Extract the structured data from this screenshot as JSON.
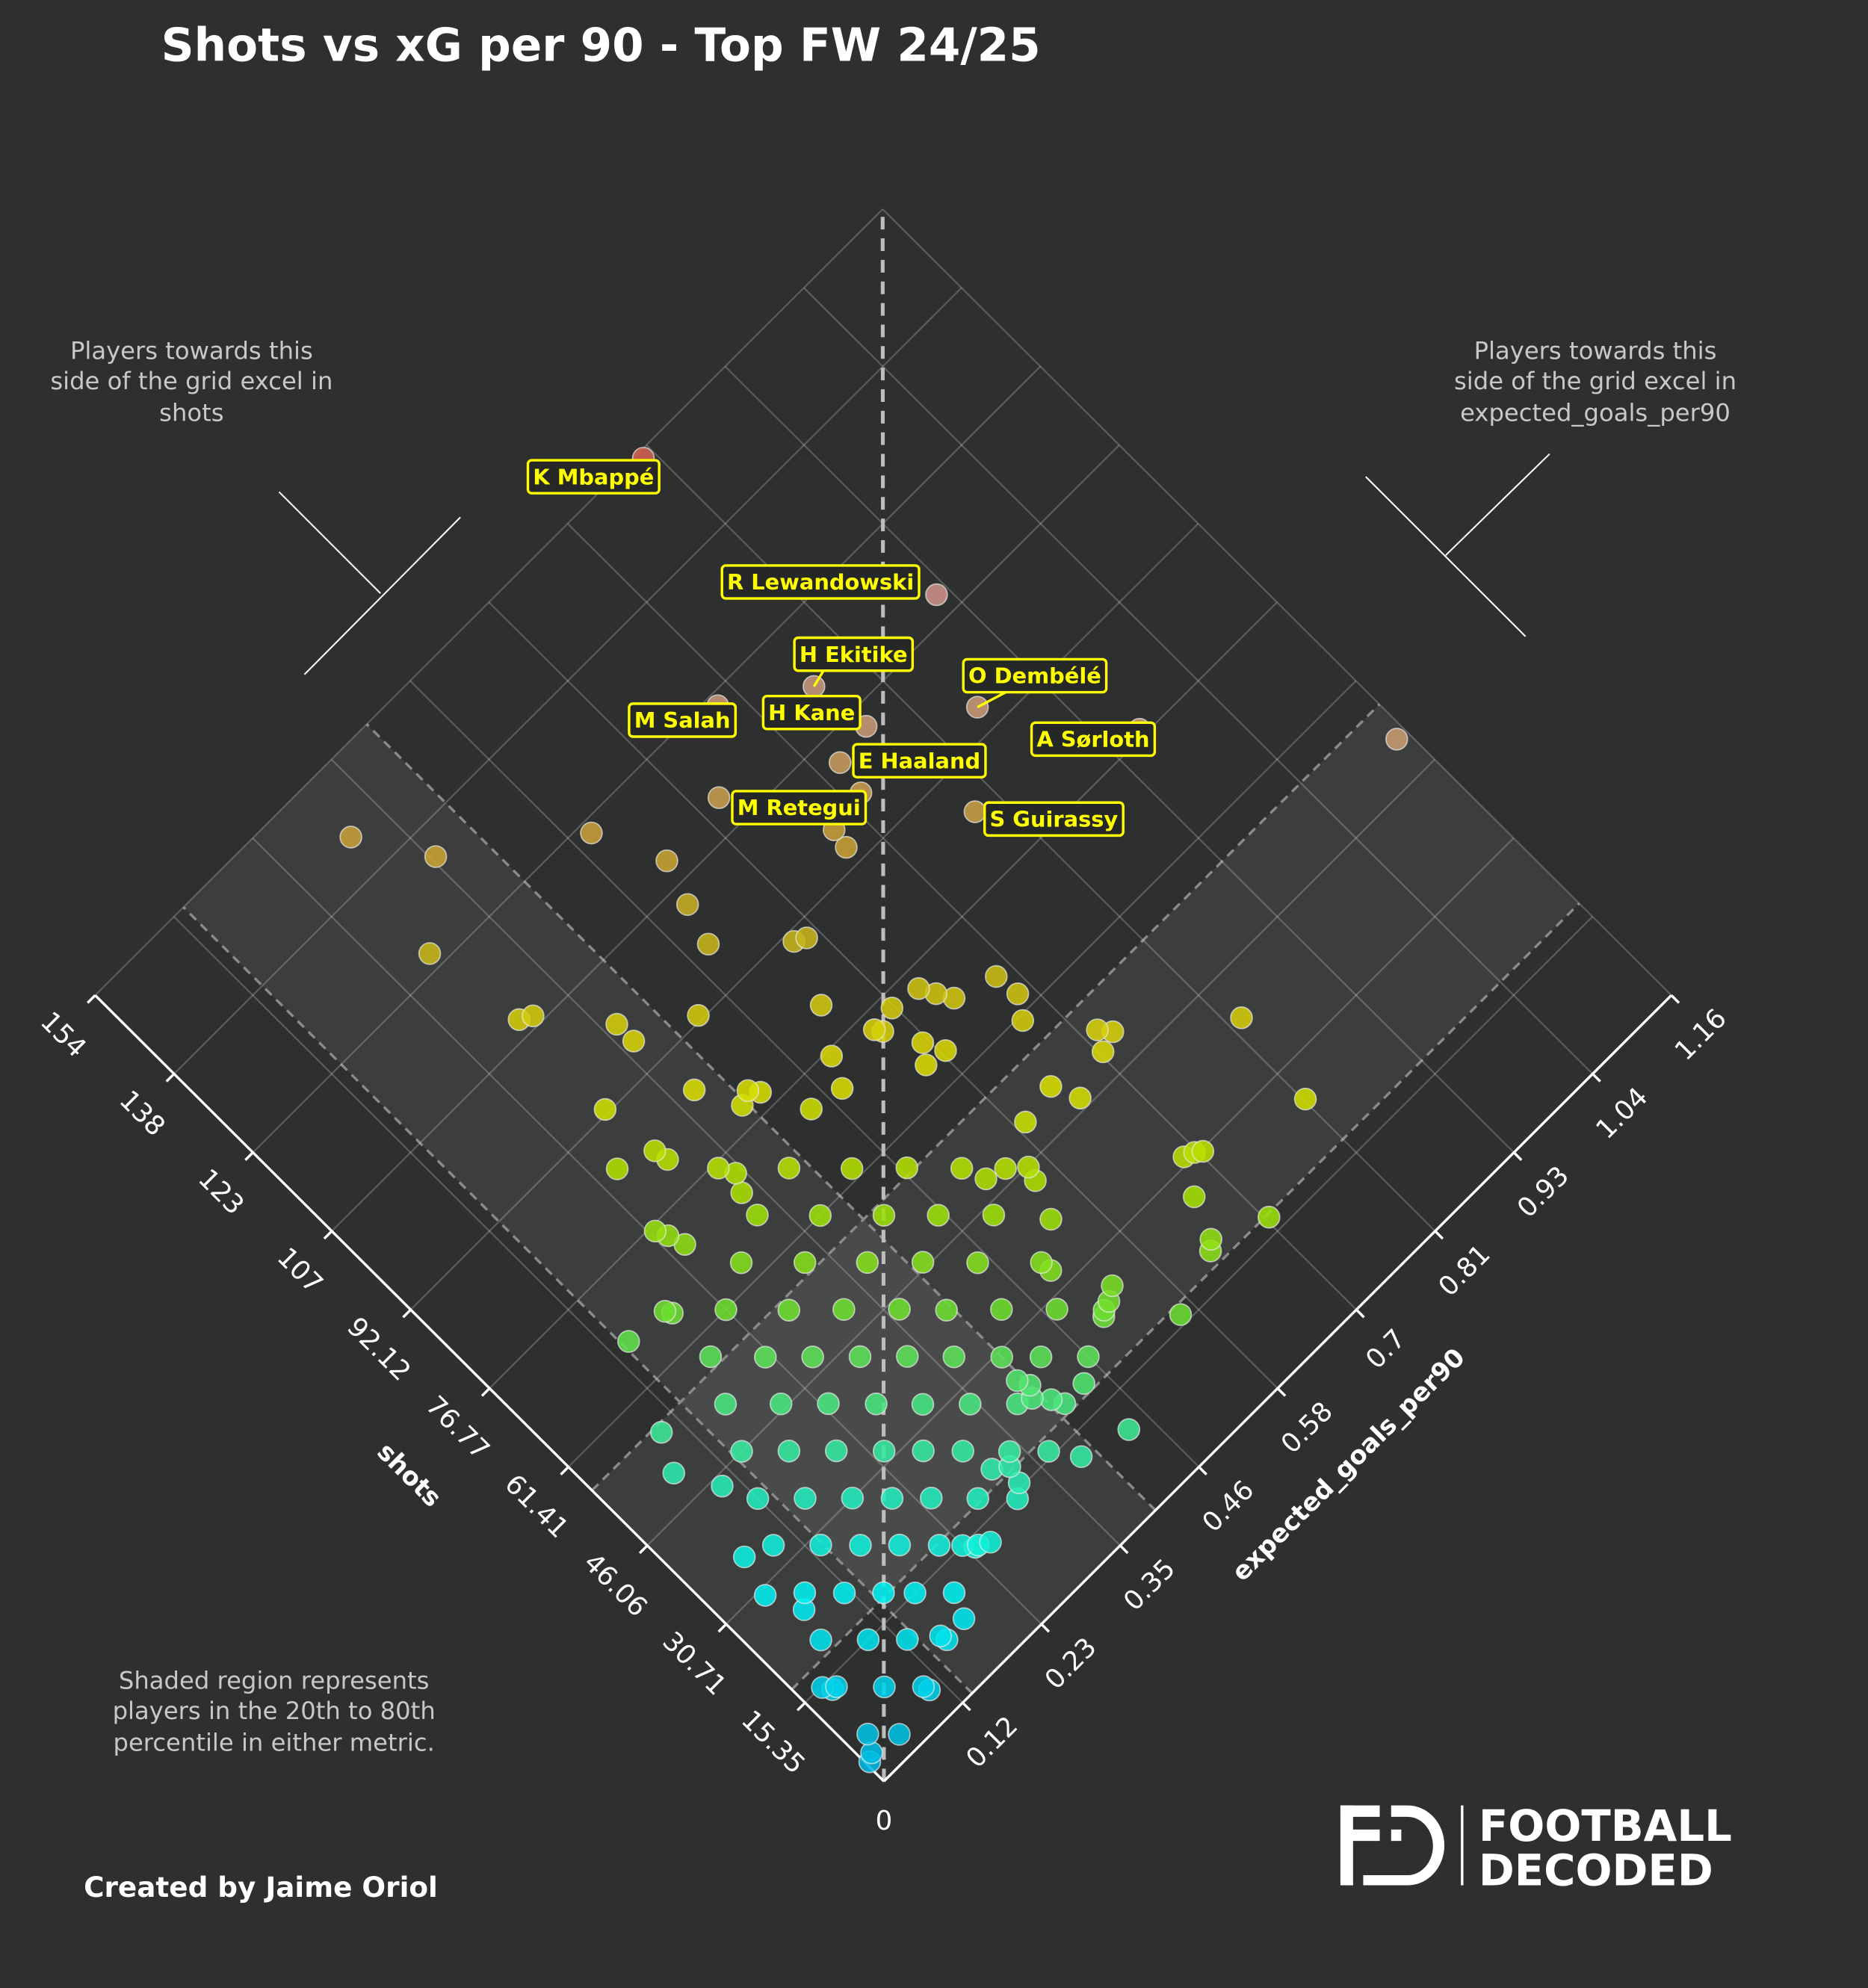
{
  "title": "Shots vs xG per 90 - Top FW 24/25",
  "notes": {
    "left": [
      "Players towards this",
      "side of the grid excel in",
      "shots"
    ],
    "right": [
      "Players towards this",
      "side of the grid excel in",
      "expected_goals_per90"
    ],
    "shaded": [
      "Shaded region represents",
      "players in the 20th to 80th",
      "percentile in either metric."
    ]
  },
  "credit": "Created by Jaime Oriol",
  "logo": {
    "line1": "FOOTBALL",
    "line2": "DECODED",
    "mark": "FD"
  },
  "colors": {
    "background": "#2e2f2f",
    "label_text": "#ffff00",
    "label_border": "#ffff00",
    "low": "#00d0f0",
    "mid": "#70e030",
    "high": "#e0e000",
    "top": "#d04a30"
  },
  "chart_data": {
    "type": "scatter",
    "title": "Shots vs xG per 90 - Top FW 24/25",
    "xlabel": "shots",
    "ylabel": "expected_goals_per90",
    "xlim": [
      0,
      154
    ],
    "ylim": [
      0,
      1.16
    ],
    "origin_label": "0",
    "shots_ticks": [
      "15.35",
      "30.71",
      "46.06",
      "61.41",
      "76.77",
      "92.12",
      "107",
      "123",
      "138",
      "154"
    ],
    "xg_ticks": [
      "0.12",
      "0.23",
      "0.35",
      "0.46",
      "0.58",
      "0.7",
      "0.81",
      "0.93",
      "1.04",
      "1.16"
    ],
    "grid": true,
    "shaded_band": {
      "shots": [
        18,
        57
      ],
      "expected_goals_per90": [
        0.13,
        0.4
      ]
    },
    "color_by": "combined rank",
    "labeled_players": [
      {
        "name": "K Mbappé",
        "shots": 153,
        "xg": 0.8
      },
      {
        "name": "R Lewandowski",
        "shots": 111,
        "xg": 0.915
      },
      {
        "name": "H Ekitike",
        "shots": 114,
        "xg": 0.757
      },
      {
        "name": "O Dembélé",
        "shots": 96,
        "xg": 0.862
      },
      {
        "name": "M Salah",
        "shots": 121.5,
        "xg": 0.672
      },
      {
        "name": "H Kane",
        "shots": 105,
        "xg": 0.766
      },
      {
        "name": "E Haaland",
        "shots": 104,
        "xg": 0.72
      },
      {
        "name": "A Sørloth",
        "shots": 78,
        "xg": 0.965
      },
      {
        "name": "M Retegui",
        "shots": 99,
        "xg": 0.713
      },
      {
        "name": "S Guirassy",
        "shots": 86,
        "xg": 0.783
      }
    ],
    "points": [
      [
        144.5,
        0.305
      ],
      [
        134.3,
        0.353
      ],
      [
        125.4,
        0.277
      ],
      [
        110.2,
        0.294
      ],
      [
        109.2,
        0.307
      ],
      [
        121.4,
        0.485
      ],
      [
        111.3,
        0.52
      ],
      [
        105.0,
        0.503
      ],
      [
        99.1,
        0.489
      ],
      [
        112.4,
        0.605
      ],
      [
        91.0,
        0.554
      ],
      [
        90.1,
        0.566
      ],
      [
        98.0,
        0.666
      ],
      [
        95.1,
        0.662
      ],
      [
        100.2,
        0.3625
      ],
      [
        96.9,
        0.3625
      ],
      [
        93.1,
        0.429
      ],
      [
        82.1,
        0.527
      ],
      [
        93.0,
        0.291
      ],
      [
        86.2,
        0.371
      ],
      [
        86.0,
        0.256
      ],
      [
        84.1,
        0.297
      ],
      [
        82.0,
        0.3
      ],
      [
        80.9,
        0.41
      ],
      [
        79.5,
        0.418
      ],
      [
        80.0,
        0.395
      ],
      [
        72.9,
        0.443
      ],
      [
        71.9,
        0.481
      ],
      [
        76.1,
        0.497
      ],
      [
        74.5,
        0.548
      ],
      [
        73.5,
        0.553
      ],
      [
        74.9,
        0.577
      ],
      [
        74.2,
        0.611
      ],
      [
        72.0,
        0.62
      ],
      [
        69.8,
        0.63
      ],
      [
        67.8,
        0.677
      ],
      [
        64.0,
        0.68
      ],
      [
        60.9,
        0.664
      ],
      [
        68.5,
        0.574
      ],
      [
        66.0,
        0.56
      ],
      [
        65.5,
        0.585
      ],
      [
        52.7,
        0.712
      ],
      [
        51.0,
        0.722
      ],
      [
        50.0,
        0.7
      ],
      [
        51.7,
        0.636
      ],
      [
        47.7,
        0.649
      ],
      [
        50.7,
        0.591
      ],
      [
        39.8,
        0.827
      ],
      [
        25.6,
        0.814
      ],
      [
        51.9,
        1.147
      ],
      [
        31.2,
        0.693
      ],
      [
        30.5,
        0.7
      ],
      [
        31.8,
        0.682
      ],
      [
        26.9,
        0.66
      ],
      [
        21.1,
        0.641
      ],
      [
        20.0,
        0.632
      ],
      [
        17.6,
        0.7
      ],
      [
        16.7,
        0.563
      ],
      [
        10.5,
        0.44
      ],
      [
        48.1,
        0.542
      ],
      [
        46.0,
        0.56
      ],
      [
        44.0,
        0.555
      ],
      [
        49.0,
        0.52
      ],
      [
        38.7,
        0.538
      ],
      [
        33.7,
        0.5
      ],
      [
        26.2,
        0.534
      ],
      [
        25.0,
        0.52
      ],
      [
        24.0,
        0.505
      ],
      [
        19.4,
        0.441
      ],
      [
        12.5,
        0.385
      ],
      [
        68.0,
        0.137
      ],
      [
        55.9,
        0.094
      ],
      [
        50.7,
        0.073
      ],
      [
        44.7,
        0.099
      ],
      [
        35.6,
        0.063
      ],
      [
        29.8,
        0.05
      ],
      [
        24.6,
        0.068
      ],
      [
        15.2,
        0.024
      ],
      [
        14.0,
        0.03
      ],
      [
        3.3,
        0.004
      ],
      [
        4.0,
        0.012
      ],
      [
        4.5,
        0.101
      ],
      [
        8.1,
        0.179
      ],
      [
        8.7,
        0.149
      ],
      [
        67.4,
        0.186
      ],
      [
        66.5,
        0.19
      ],
      [
        76.2,
        0.238
      ],
      [
        74.5,
        0.244
      ],
      [
        72.0,
        0.25
      ],
      [
        76.2,
        0.331
      ],
      [
        74.0,
        0.34
      ],
      [
        71.5,
        0.33
      ],
      [
        26.2,
        0.394
      ],
      [
        24.5,
        0.4
      ],
      [
        23.0,
        0.392
      ],
      [
        21.0,
        0.405
      ],
      [
        18.5,
        0.325
      ],
      [
        16.0,
        0.32
      ],
      [
        20.0,
        0.31
      ],
      [
        15.4,
        0.232
      ],
      [
        14.0,
        0.24
      ],
      [
        13.0,
        0.255
      ],
      [
        6.2,
        0.023
      ],
      [
        3.1,
        0.046
      ],
      [
        13.9,
        0.035
      ],
      [
        9.2,
        0.07
      ],
      [
        5.4,
        0.099
      ],
      [
        20.0,
        0.058
      ],
      [
        15.4,
        0.093
      ],
      [
        11.6,
        0.122
      ],
      [
        7.7,
        0.151
      ],
      [
        26.2,
        0.081
      ],
      [
        22.3,
        0.11
      ],
      [
        18.5,
        0.139
      ],
      [
        15.4,
        0.162
      ],
      [
        11.6,
        0.191
      ],
      [
        33.9,
        0.093
      ],
      [
        29.3,
        0.128
      ],
      [
        25.4,
        0.157
      ],
      [
        21.6,
        0.186
      ],
      [
        17.7,
        0.215
      ],
      [
        13.9,
        0.244
      ],
      [
        40.0,
        0.116
      ],
      [
        35.4,
        0.151
      ],
      [
        30.8,
        0.186
      ],
      [
        26.9,
        0.215
      ],
      [
        23.1,
        0.244
      ],
      [
        18.5,
        0.278
      ],
      [
        14.6,
        0.307
      ],
      [
        46.2,
        0.139
      ],
      [
        41.6,
        0.174
      ],
      [
        37.0,
        0.209
      ],
      [
        32.3,
        0.244
      ],
      [
        28.5,
        0.273
      ],
      [
        24.6,
        0.302
      ],
      [
        20.0,
        0.336
      ],
      [
        16.2,
        0.365
      ],
      [
        52.4,
        0.162
      ],
      [
        47.0,
        0.203
      ],
      [
        42.4,
        0.238
      ],
      [
        37.7,
        0.273
      ],
      [
        33.1,
        0.307
      ],
      [
        28.5,
        0.342
      ],
      [
        23.9,
        0.377
      ],
      [
        19.3,
        0.412
      ],
      [
        58.5,
        0.186
      ],
      [
        53.1,
        0.226
      ],
      [
        48.5,
        0.261
      ],
      [
        43.9,
        0.296
      ],
      [
        39.3,
        0.331
      ],
      [
        34.7,
        0.365
      ],
      [
        30.0,
        0.4
      ],
      [
        26.2,
        0.429
      ],
      [
        21.6,
        0.464
      ],
      [
        61.6,
        0.232
      ],
      [
        55.4,
        0.278
      ],
      [
        50.1,
        0.319
      ],
      [
        44.7,
        0.36
      ],
      [
        40.0,
        0.394
      ],
      [
        34.7,
        0.435
      ],
      [
        29.3,
        0.476
      ],
      [
        24.6,
        0.51
      ],
      [
        64.7,
        0.278
      ],
      [
        58.5,
        0.325
      ],
      [
        52.4,
        0.371
      ],
      [
        47.0,
        0.412
      ],
      [
        41.6,
        0.452
      ],
      [
        35.4,
        0.499
      ],
      [
        67.8,
        0.325
      ],
      [
        61.6,
        0.371
      ],
      [
        55.4,
        0.418
      ],
      [
        50.1,
        0.458
      ],
      [
        44.7,
        0.499
      ],
      [
        69.3,
        0.383
      ],
      [
        63.1,
        0.429
      ],
      [
        57.8,
        0.47
      ],
      [
        52.4,
        0.51
      ]
    ]
  }
}
